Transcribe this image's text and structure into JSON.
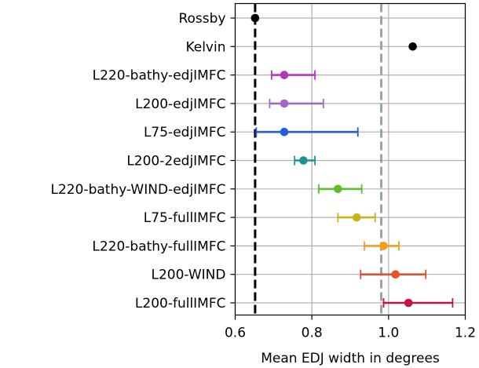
{
  "chart_data": {
    "type": "scatter",
    "xlabel": "Mean EDJ width in degrees",
    "ylabel": "",
    "title": "",
    "xlim": [
      0.6,
      1.2
    ],
    "xticks": [
      0.6,
      0.8,
      1.0,
      1.2
    ],
    "xtick_labels": [
      "0.6",
      "0.8",
      "1.0",
      "1.2"
    ],
    "grid": true,
    "reference_lines": [
      {
        "x": 0.652,
        "style": "dashed",
        "color": "#000000"
      },
      {
        "x": 0.981,
        "style": "dashed",
        "color": "#95a5a6"
      }
    ],
    "points": [
      {
        "label": "Rossby",
        "x": 0.652,
        "err_low": null,
        "err_high": null,
        "color": "#000000"
      },
      {
        "label": "Kelvin",
        "x": 1.063,
        "err_low": null,
        "err_high": null,
        "color": "#000000"
      },
      {
        "label": "L220-bathy-edjIMFC",
        "x": 0.728,
        "err_low": 0.695,
        "err_high": 0.808,
        "color": "#b534b8"
      },
      {
        "label": "L200-edjIMFC",
        "x": 0.728,
        "err_low": 0.69,
        "err_high": 0.83,
        "color": "#a566cc"
      },
      {
        "label": "L75-edjIMFC",
        "x": 0.728,
        "err_low": 0.655,
        "err_high": 0.92,
        "color": "#1f5fd9"
      },
      {
        "label": "L200-2edjIMFC",
        "x": 0.778,
        "err_low": 0.755,
        "err_high": 0.808,
        "color": "#16968f"
      },
      {
        "label": "L220-bathy-WIND-edjIMFC",
        "x": 0.868,
        "err_low": 0.818,
        "err_high": 0.93,
        "color": "#5cbe2a"
      },
      {
        "label": "L75-fullIMFC",
        "x": 0.917,
        "err_low": 0.868,
        "err_high": 0.965,
        "color": "#c9b31a"
      },
      {
        "label": "L220-bathy-fullIMFC",
        "x": 0.987,
        "err_low": 0.937,
        "err_high": 1.027,
        "color": "#f39c1f"
      },
      {
        "label": "L200-WIND",
        "x": 1.018,
        "err_low": 0.927,
        "err_high": 1.097,
        "color": "#e8502d"
      },
      {
        "label": "L200-fullIMFC",
        "x": 1.052,
        "err_low": 0.987,
        "err_high": 1.167,
        "color": "#c7113f"
      }
    ]
  }
}
